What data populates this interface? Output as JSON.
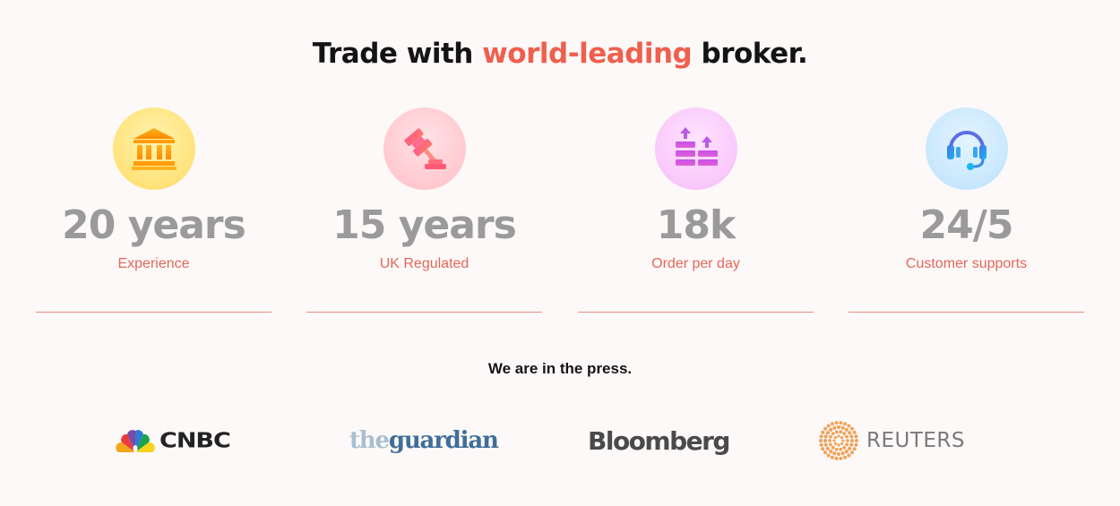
{
  "headline": {
    "before": "Trade with ",
    "accent": "world-leading",
    "after": " broker."
  },
  "stats": [
    {
      "icon": "bank-icon",
      "value": "20 years",
      "label": "Experience"
    },
    {
      "icon": "gavel-icon",
      "value": "15 years",
      "label": "UK Regulated"
    },
    {
      "icon": "orders-icon",
      "value": "18k",
      "label": "Order per day"
    },
    {
      "icon": "headset-icon",
      "value": "24/5",
      "label": "Customer supports"
    }
  ],
  "press": {
    "title": "We are in the press.",
    "logos": [
      {
        "name": "cnbc-logo",
        "text": "CNBC"
      },
      {
        "name": "guardian-logo",
        "the": "the",
        "text": "guardian"
      },
      {
        "name": "bloomberg-logo",
        "text": "Bloomberg"
      },
      {
        "name": "reuters-logo",
        "text": "REUTERS"
      }
    ]
  },
  "colors": {
    "accent": "#ef5f4e",
    "stat_value": "#9a9a9a",
    "stat_label": "#e2675a",
    "background": "#fdf9f8"
  }
}
